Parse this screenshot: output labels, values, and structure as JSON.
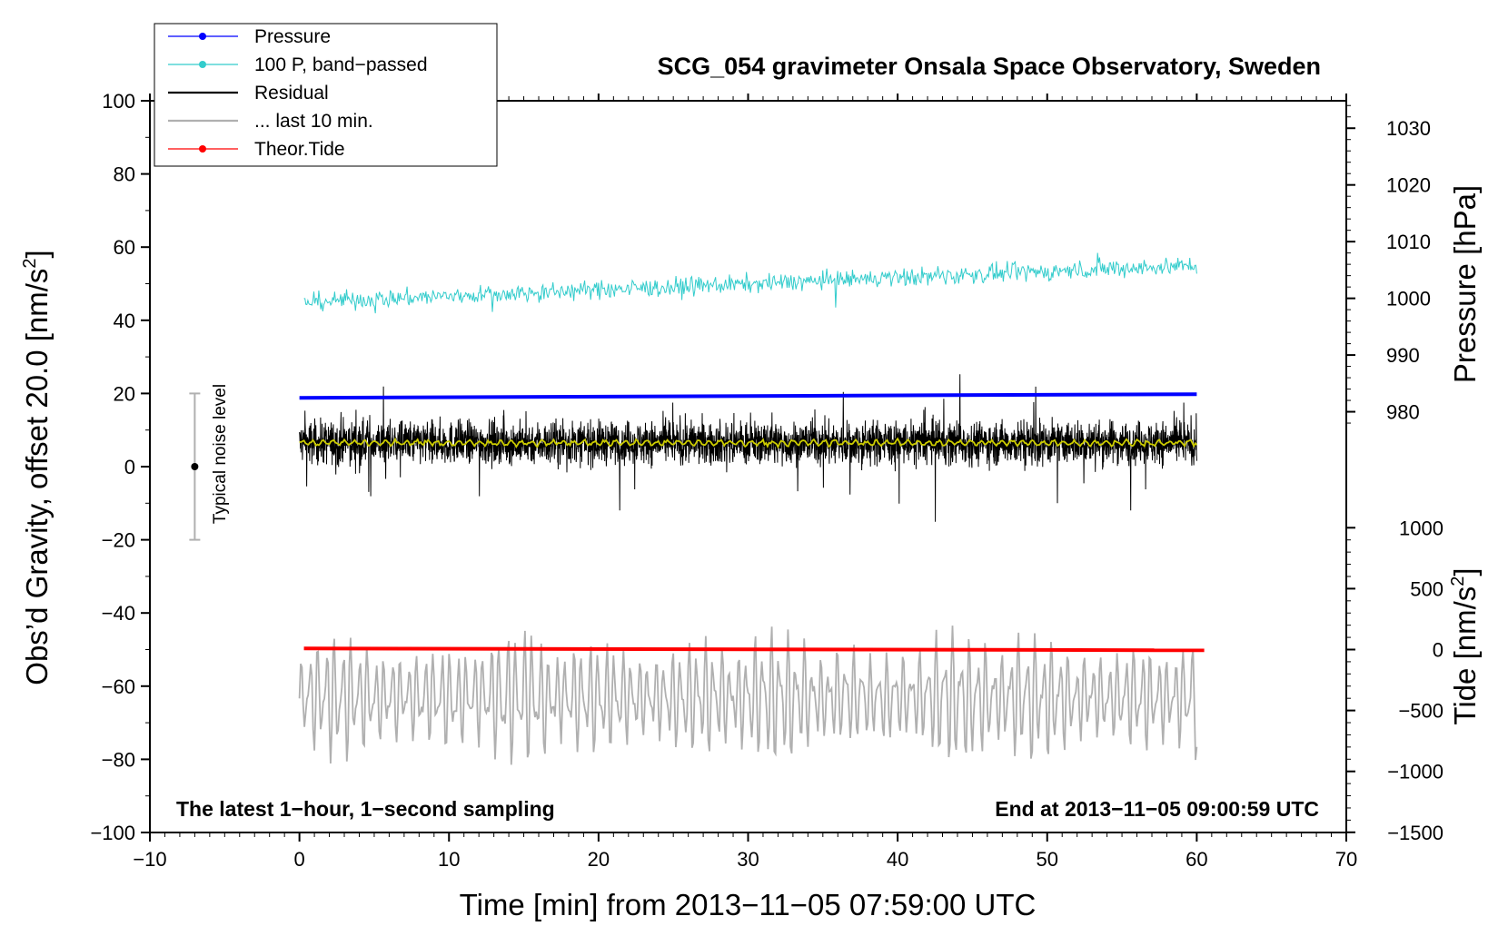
{
  "chart_data": {
    "type": "line",
    "title": "SCG_054 gravimeter Onsala Space Observatory, Sweden",
    "xlabel": "Time [min] from 2013−11−05 07:59:00 UTC",
    "ylabel_left": "Obs’d Gravity, offset 20.0 [nm/s",
    "ylabel_left_sup": "2",
    "ylabel_left_end": "]",
    "ylabel_right_pressure": "Pressure [hPa]",
    "ylabel_right_tide": "Tide [nm/s",
    "ylabel_right_tide_sup": "2",
    "ylabel_right_tide_end": "]",
    "xlim": [
      -10,
      70
    ],
    "ylim": [
      -100,
      100
    ],
    "x_ticks": [
      "−10",
      "0",
      "10",
      "20",
      "30",
      "40",
      "50",
      "60",
      "70"
    ],
    "x_tick_values": [
      -10,
      0,
      10,
      20,
      30,
      40,
      50,
      60,
      70
    ],
    "y_ticks": [
      "100",
      "80",
      "60",
      "40",
      "20",
      "0",
      "−20",
      "−40",
      "−60",
      "−80",
      "−100"
    ],
    "y_tick_values": [
      100,
      80,
      60,
      40,
      20,
      0,
      -20,
      -40,
      -60,
      -80,
      -100
    ],
    "pressure_axis": {
      "ticks": [
        "1030",
        "1020",
        "1010",
        "1000",
        "990",
        "980"
      ],
      "tick_values": [
        1030,
        1020,
        1010,
        1000,
        990,
        980
      ],
      "gravity_at_980": 15.0,
      "gravity_per_hpa": 1.55
    },
    "tide_axis": {
      "ticks": [
        "1000",
        "500",
        "0",
        "−500",
        "−1000",
        "−1500"
      ],
      "tick_values": [
        1000,
        500,
        0,
        -500,
        -1000,
        -1500
      ],
      "gravity_at_0": -50.0,
      "gravity_per_unit": 0.0333
    },
    "legend": [
      {
        "label": "Pressure",
        "color": "#0000ff",
        "marker": true
      },
      {
        "label": "100 P, band−passed",
        "color": "#33cccc",
        "marker": true
      },
      {
        "label": "Residual",
        "color": "#000000",
        "marker": false
      },
      {
        "label": "... last 10 min.",
        "color": "#b0b0b0",
        "marker": false
      },
      {
        "label": "Theor.Tide",
        "color": "#ff0000",
        "marker": true
      }
    ],
    "series": [
      {
        "name": "Pressure",
        "color": "#0000ff",
        "x_range": [
          0,
          60
        ],
        "start": 18.8,
        "end": 19.8
      },
      {
        "name": "100 P, band−passed",
        "color": "#33cccc",
        "x_range": [
          0.3,
          60
        ],
        "start": 45,
        "end": 55,
        "noise": 3.2
      },
      {
        "name": "Residual",
        "color": "#000000",
        "x_range": [
          0,
          60
        ],
        "center": 6.5,
        "noise": 7.5
      },
      {
        "name": "Residual smoothed",
        "color": "#cccc00",
        "x_range": [
          0,
          60
        ],
        "center": 6.5
      },
      {
        "name": "... last 10 min.",
        "color": "#b0b0b0",
        "x_range": [
          0,
          60
        ],
        "center": -63,
        "amplitude": 18
      },
      {
        "name": "Theor.Tide",
        "color": "#ff0000",
        "x_range": [
          0.3,
          60.5
        ],
        "start": -49.7,
        "end": -50.2
      }
    ],
    "noise_indicator": {
      "label": "Typical noise level",
      "x": -7,
      "center": 0,
      "low": -20,
      "high": 20
    },
    "note_left": "The latest 1−hour, 1−second sampling",
    "note_right": "End at 2013−11−05 09:00:59 UTC"
  }
}
